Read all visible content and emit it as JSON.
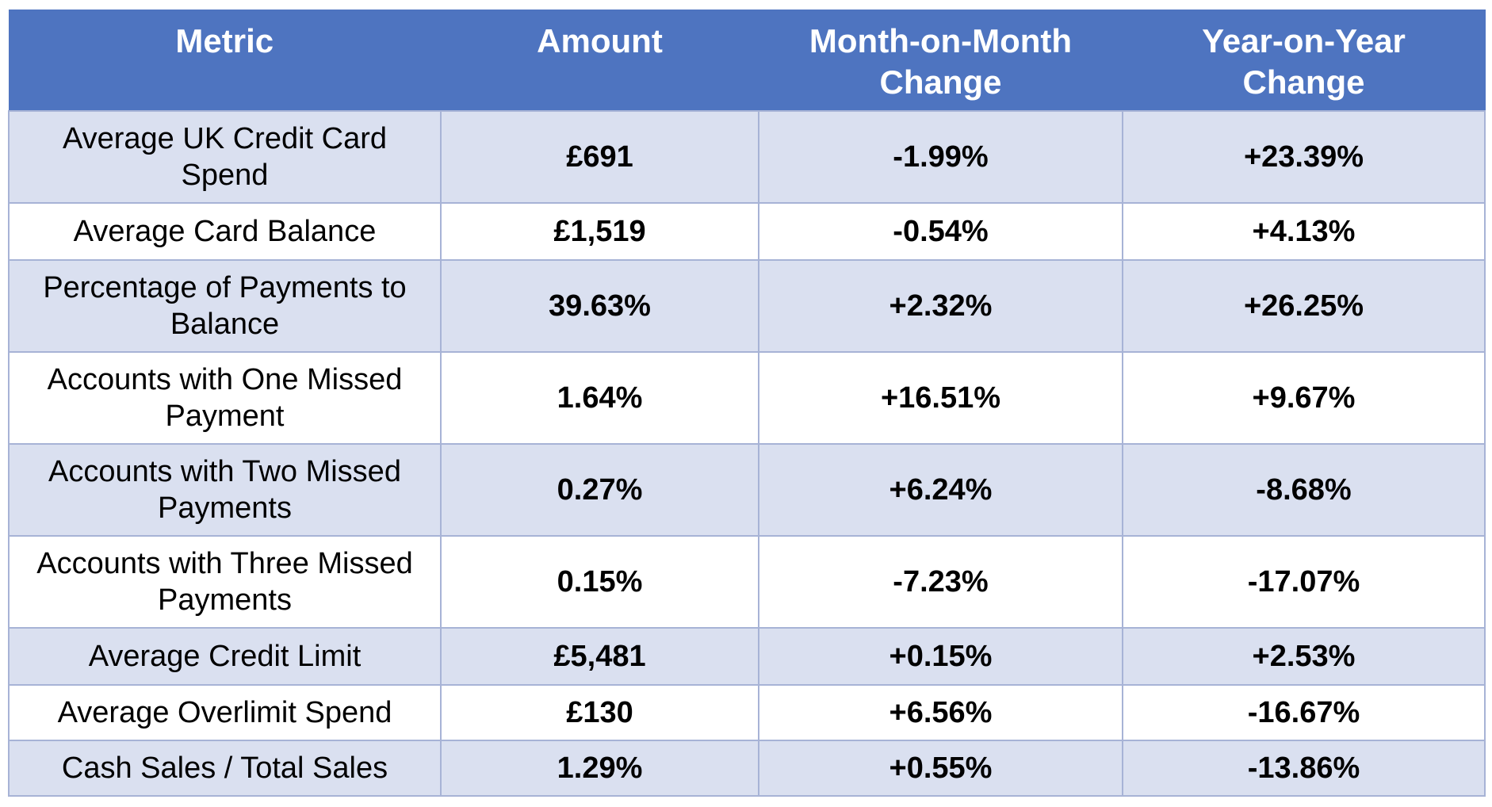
{
  "table": {
    "headers": [
      "Metric",
      "Amount",
      "Month-on-Month Change",
      "Year-on-Year Change"
    ],
    "header_lines": [
      [
        "Metric"
      ],
      [
        "Amount"
      ],
      [
        "Month-on-Month",
        "Change"
      ],
      [
        "Year-on-Year",
        "Change"
      ]
    ],
    "rows": [
      {
        "metric": "Average UK Credit Card Spend",
        "amount": "£691",
        "mom": "-1.99%",
        "yoy": "+23.39%"
      },
      {
        "metric": "Average Card Balance",
        "amount": "£1,519",
        "mom": "-0.54%",
        "yoy": "+4.13%"
      },
      {
        "metric": "Percentage of Payments to Balance",
        "amount": "39.63%",
        "mom": "+2.32%",
        "yoy": "+26.25%"
      },
      {
        "metric": "Accounts with One Missed Payment",
        "amount": "1.64%",
        "mom": "+16.51%",
        "yoy": "+9.67%"
      },
      {
        "metric": "Accounts with Two Missed Payments",
        "amount": "0.27%",
        "mom": "+6.24%",
        "yoy": "-8.68%"
      },
      {
        "metric": "Accounts with Three Missed Payments",
        "amount": "0.15%",
        "mom": "-7.23%",
        "yoy": "-17.07%"
      },
      {
        "metric": "Average Credit Limit",
        "amount": "£5,481",
        "mom": "+0.15%",
        "yoy": "+2.53%"
      },
      {
        "metric": "Average Overlimit Spend",
        "amount": "£130",
        "mom": "+6.56%",
        "yoy": "-16.67%"
      },
      {
        "metric": "Cash Sales / Total Sales",
        "amount": "1.29%",
        "mom": "+0.55%",
        "yoy": "-13.86%"
      }
    ]
  },
  "colors": {
    "header_bg": "#4e74c0",
    "header_text": "#ffffff",
    "stripe_bg": "#dae0f0",
    "plain_bg": "#ffffff",
    "border": "#a7b3d6"
  }
}
